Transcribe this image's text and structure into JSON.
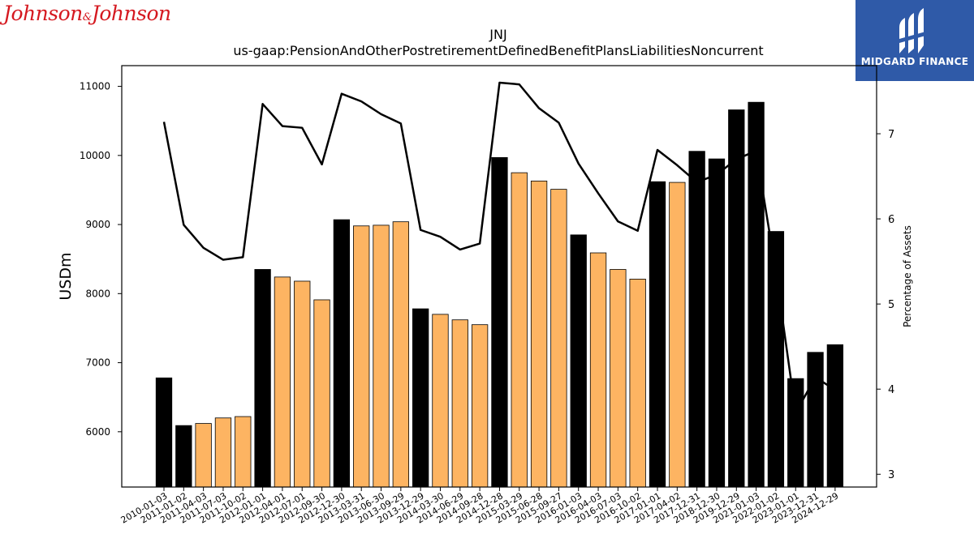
{
  "branding": {
    "company_logo_text": "Johnson & Johnson",
    "publisher_logo_text": "MIDGARD FINANCE",
    "company_logo_color": "#d51920",
    "publisher_logo_bg": "#2f5aa8"
  },
  "chart_data": {
    "type": "bar",
    "title": "JNJ",
    "subtitle": "us-gaap:PensionAndOtherPostretirementDefinedBenefitPlansLiabilitiesNoncurrent",
    "ylabel": "USDm",
    "y2label": "Percentage of Assets",
    "ylim": [
      5200,
      11300
    ],
    "y2lim": [
      2.85,
      7.8
    ],
    "yticks": [
      6000,
      7000,
      8000,
      9000,
      10000,
      11000
    ],
    "y2ticks": [
      3,
      4,
      5,
      6,
      7
    ],
    "categories": [
      "2010-01-03",
      "2011-01-02",
      "2011-04-03",
      "2011-07-03",
      "2011-10-02",
      "2012-01-01",
      "2012-04-01",
      "2012-07-01",
      "2012-09-30",
      "2012-12-30",
      "2013-03-31",
      "2013-06-30",
      "2013-09-29",
      "2013-12-29",
      "2014-03-30",
      "2014-06-29",
      "2014-09-28",
      "2014-12-28",
      "2015-03-29",
      "2015-06-28",
      "2015-09-27",
      "2016-01-03",
      "2016-04-03",
      "2016-07-03",
      "2016-10-02",
      "2017-01-01",
      "2017-04-02",
      "2017-12-31",
      "2018-12-30",
      "2019-12-29",
      "2021-01-03",
      "2022-01-02",
      "2023-01-01",
      "2023-12-31",
      "2024-12-29"
    ],
    "bar_values": [
      6780,
      6090,
      6120,
      6200,
      6220,
      8350,
      8240,
      8180,
      7910,
      9070,
      8980,
      8990,
      9040,
      7780,
      7700,
      7620,
      7550,
      9970,
      9750,
      9630,
      9510,
      8850,
      8590,
      8350,
      8210,
      9620,
      9610,
      10060,
      9950,
      10660,
      10770,
      8900,
      6770,
      7150,
      7260
    ],
    "annual_report": [
      true,
      true,
      false,
      false,
      false,
      true,
      false,
      false,
      false,
      true,
      false,
      false,
      false,
      true,
      false,
      false,
      false,
      true,
      false,
      false,
      false,
      true,
      false,
      false,
      false,
      true,
      false,
      true,
      true,
      true,
      true,
      true,
      true,
      true,
      true
    ],
    "line_values": [
      7.14,
      5.93,
      5.66,
      5.52,
      5.55,
      7.35,
      7.09,
      7.07,
      6.64,
      7.47,
      7.38,
      7.23,
      7.12,
      5.87,
      5.79,
      5.64,
      5.71,
      7.6,
      7.58,
      7.3,
      7.13,
      6.65,
      6.3,
      5.97,
      5.86,
      6.81,
      6.63,
      6.43,
      6.52,
      6.7,
      6.8,
      5.38,
      3.72,
      4.14,
      3.99
    ],
    "colors": {
      "annual_bar": "#000000",
      "quarterly_bar": "#fdb462",
      "line": "#000000"
    }
  }
}
